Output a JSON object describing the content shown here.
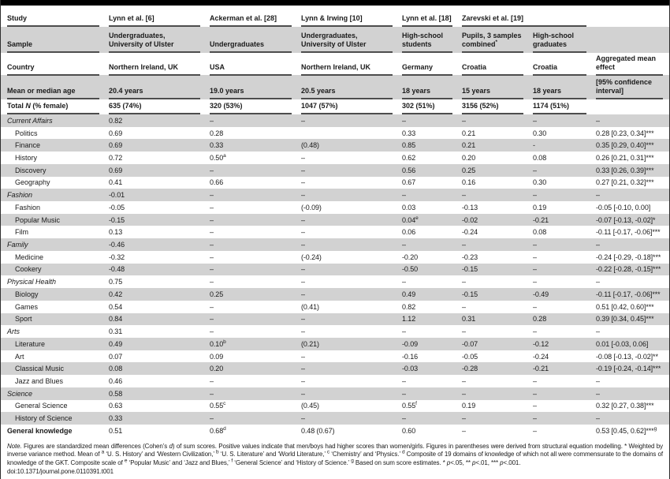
{
  "style": {
    "stripe_color": "#d2d2d2",
    "rule_color": "#4d4d4d",
    "top_bar_color": "#000000"
  },
  "header": {
    "rows": [
      {
        "label": [
          {
            "t": "Study"
          }
        ],
        "cells": [
          {
            "t": "Lynn et al. [6]"
          },
          {
            "t": "Ackerman et al. [28]"
          },
          {
            "t": "Lynn & Irwing [10]"
          },
          {
            "t": "Lynn et al. [18]"
          },
          {
            "t": "Zarevski et al. [19]",
            "span": 2
          },
          {
            "t": ""
          }
        ]
      },
      {
        "label": [
          {
            "t": "Sample"
          }
        ],
        "cells": [
          {
            "t": "Undergraduates, University of Ulster"
          },
          {
            "t": "Undergraduates"
          },
          {
            "t": "Undergraduates, University of Ulster"
          },
          {
            "t": "High-school students"
          },
          {
            "t": "Pupils, 3 samples combined^*"
          },
          {
            "t": "High-school graduates"
          },
          {
            "t": ""
          }
        ]
      },
      {
        "label": [
          {
            "t": "Country"
          }
        ],
        "cells": [
          {
            "t": "Northern Ireland, UK"
          },
          {
            "t": "USA"
          },
          {
            "t": "Northern Ireland, UK"
          },
          {
            "t": "Germany"
          },
          {
            "t": "Croatia"
          },
          {
            "t": "Croatia"
          },
          {
            "t": "Aggregated mean effect"
          }
        ]
      },
      {
        "label": [
          {
            "t": "Mean or median age"
          }
        ],
        "cells": [
          {
            "t": "20.4 years"
          },
          {
            "t": "19.0 years"
          },
          {
            "t": "20.5 years"
          },
          {
            "t": "18 years"
          },
          {
            "t": "15 years"
          },
          {
            "t": "18 years"
          },
          {
            "t": "[95% confidence interval]"
          }
        ]
      },
      {
        "label": [
          {
            "t": "Total "
          },
          {
            "t": "N",
            "i": 1
          },
          {
            "t": " (% female)"
          }
        ],
        "cells": [
          {
            "t": "635 (74%)"
          },
          {
            "t": "320 (53%)"
          },
          {
            "t": "1047 (57%)"
          },
          {
            "t": "302 (51%)"
          },
          {
            "t": "3156 (52%)"
          },
          {
            "t": "1174 (51%)"
          },
          {
            "t": ""
          }
        ]
      }
    ]
  },
  "body": {
    "rows": [
      {
        "label": "Current Affairs",
        "style": "category",
        "cells": [
          "0.82",
          "–",
          "–",
          "–",
          "–",
          "–",
          "–"
        ]
      },
      {
        "label": "Politics",
        "style": "sub",
        "cells": [
          "0.69",
          "0.28",
          "",
          "0.33",
          "0.21",
          "0.30",
          "0.28 [0.23, 0.34]***"
        ]
      },
      {
        "label": "Finance",
        "style": "sub",
        "cells": [
          "0.69",
          "0.33",
          "(0.48)",
          "0.85",
          "0.21",
          "-",
          "0.35 [0.29, 0.40]***"
        ]
      },
      {
        "label": "History",
        "style": "sub",
        "cells": [
          "0.72",
          "0.50^a",
          "–",
          "0.62",
          "0.20",
          "0.08",
          "0.26 [0.21, 0.31]***"
        ]
      },
      {
        "label": "Discovery",
        "style": "sub",
        "cells": [
          "0.69",
          "–",
          "–",
          "0.56",
          "0.25",
          "–",
          "0.33 [0.26, 0.39]***"
        ]
      },
      {
        "label": "Geography",
        "style": "sub",
        "cells": [
          "0.41",
          "0.66",
          "–",
          "0.67",
          "0.16",
          "0.30",
          "0.27 [0.21, 0.32]***"
        ]
      },
      {
        "label": "Fashion",
        "style": "category",
        "cells": [
          "-0.01",
          "–",
          "–",
          "–",
          "–",
          "–",
          "–"
        ]
      },
      {
        "label": "Fashion",
        "style": "sub",
        "cells": [
          "-0.05",
          "–",
          "(-0.09)",
          "0.03",
          "-0.13",
          "0.19",
          "-0.05 [-0.10, 0.00]"
        ]
      },
      {
        "label": "Popular Music",
        "style": "sub",
        "cells": [
          "-0.15",
          "–",
          "–",
          "0.04^e",
          "-0.02",
          "-0.21",
          "-0.07 [-0.13, -0.02]*"
        ]
      },
      {
        "label": "Film",
        "style": "sub",
        "cells": [
          "0.13",
          "–",
          "–",
          "0.06",
          "-0.24",
          "0.08",
          "-0.11 [-0.17, -0.06]***"
        ]
      },
      {
        "label": "Family",
        "style": "category",
        "cells": [
          "-0.46",
          "–",
          "–",
          "–",
          "–",
          "–",
          "–"
        ]
      },
      {
        "label": "Medicine",
        "style": "sub",
        "cells": [
          "-0.32",
          "–",
          "(-0.24)",
          "-0.20",
          "-0.23",
          "–",
          "-0.24 [-0.29, -0.18]***"
        ]
      },
      {
        "label": "Cookery",
        "style": "sub",
        "cells": [
          "-0.48",
          "–",
          "–",
          "-0.50",
          "-0.15",
          "–",
          "-0.22 [-0.28, -0.15]***"
        ]
      },
      {
        "label": "Physical Health",
        "style": "category",
        "cells": [
          "0.75",
          "–",
          "–",
          "–",
          "–",
          "–",
          "–"
        ]
      },
      {
        "label": "Biology",
        "style": "sub",
        "cells": [
          "0.42",
          "0.25",
          "–",
          "0.49",
          "-0.15",
          "-0.49",
          "-0.11 [-0.17, -0.06]***"
        ]
      },
      {
        "label": "Games",
        "style": "sub",
        "cells": [
          "0.54",
          "–",
          "(0.41)",
          "0.82",
          "–",
          "–",
          "0.51 [0.42, 0.60]***"
        ]
      },
      {
        "label": "Sport",
        "style": "sub",
        "cells": [
          "0.84",
          "–",
          "–",
          "1.12",
          "0.31",
          "0.28",
          "0.39 [0.34, 0.45]***"
        ]
      },
      {
        "label": "Arts",
        "style": "category",
        "cells": [
          "0.31",
          "–",
          "–",
          "–",
          "–",
          "–",
          "–"
        ]
      },
      {
        "label": "Literature",
        "style": "sub",
        "cells": [
          "0.49",
          "0.10^b",
          "(0.21)",
          "-0.09",
          "-0.07",
          "-0.12",
          "0.01 [-0.03, 0.06]"
        ]
      },
      {
        "label": "Art",
        "style": "sub",
        "cells": [
          "0.07",
          "0.09",
          "–",
          "-0.16",
          "-0.05",
          "-0.24",
          "-0.08 [-0.13, -0.02]**"
        ]
      },
      {
        "label": "Classical Music",
        "style": "sub",
        "cells": [
          "0.08",
          "0.20",
          "–",
          "-0.03",
          "-0.28",
          "-0.21",
          "-0.19 [-0.24, -0.14]***"
        ]
      },
      {
        "label": "Jazz and Blues",
        "style": "sub",
        "cells": [
          "0.46",
          "–",
          "–",
          "–",
          "–",
          "–",
          "–"
        ]
      },
      {
        "label": "Science",
        "style": "category",
        "cells": [
          "0.58",
          "–",
          "–",
          "–",
          "–",
          "–",
          "–"
        ]
      },
      {
        "label": "General Science",
        "style": "sub",
        "cells": [
          "0.63",
          "0.55^c",
          "(0.45)",
          "0.55^f",
          "0.19",
          "–",
          "0.32 [0.27, 0.38]***"
        ]
      },
      {
        "label": "History of Science",
        "style": "sub",
        "cells": [
          "0.33",
          "–",
          "–",
          "–",
          "–",
          "–",
          "–"
        ]
      },
      {
        "label": "General knowledge",
        "style": "total",
        "cells": [
          "0.51",
          "0.68^d",
          "0.48 (0.67)",
          "0.60",
          "–",
          "–",
          "0.53 [0.45, 0.62]***^g"
        ]
      }
    ]
  },
  "note": {
    "segments": [
      {
        "t": "Note.",
        "i": 1
      },
      {
        "t": " Figures are standardized mean differences (Cohen’s "
      },
      {
        "t": "d",
        "i": 1
      },
      {
        "t": ") of sum scores. Positive values indicate that men/boys had higher scores than women/girls. Figures in parentheses were derived from structural equation modelling. * Weighted by inverse variance method. Mean of "
      },
      {
        "t": "a",
        "s": 1
      },
      {
        "t": " ‘U. S. History’ and ‘Western Civilization,’ "
      },
      {
        "t": "b",
        "s": 1
      },
      {
        "t": " ‘U. S. Literature’ and ‘World Literature,’ "
      },
      {
        "t": "c",
        "s": 1
      },
      {
        "t": " ‘Chemistry’ and ‘Physics.’ "
      },
      {
        "t": "d",
        "s": 1
      },
      {
        "t": " Composite of 19 domains of knowledge of which not all were commensurate to the domains of knowledge of the GKT. Composite scale of "
      },
      {
        "t": "e",
        "s": 1
      },
      {
        "t": " ‘Popular Music’ and ‘Jazz and Blues,’ "
      },
      {
        "t": "f",
        "s": 1
      },
      {
        "t": " ‘General Science’ and ‘History of Science.’ "
      },
      {
        "t": "g",
        "s": 1
      },
      {
        "t": " Based on sum score estimates. * "
      },
      {
        "t": "p",
        "i": 1
      },
      {
        "t": "<.05, ** "
      },
      {
        "t": "p",
        "i": 1
      },
      {
        "t": "<.01, *** "
      },
      {
        "t": "p",
        "i": 1
      },
      {
        "t": "<.001."
      }
    ],
    "doi": "doi:10.1371/journal.pone.0110391.t001"
  }
}
